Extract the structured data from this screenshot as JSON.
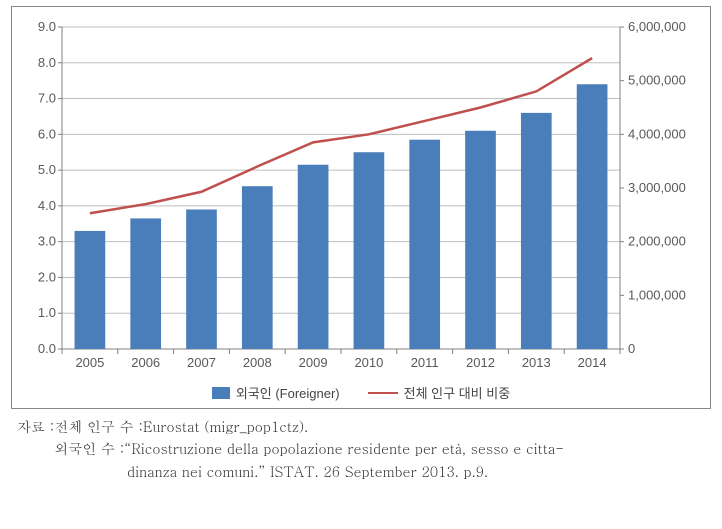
{
  "chart": {
    "type": "bar+line",
    "categories": [
      "2005",
      "2006",
      "2007",
      "2008",
      "2009",
      "2010",
      "2011",
      "2012",
      "2013",
      "2014"
    ],
    "bar_series": {
      "name": "외국인 (Foreigner)",
      "values": [
        3.3,
        3.65,
        3.9,
        4.55,
        5.15,
        5.5,
        5.85,
        6.1,
        6.6,
        7.4
      ],
      "color": "#4a7ebb"
    },
    "line_series": {
      "name": "전체 인구 대비 비중",
      "values": [
        2530000,
        2700000,
        2930000,
        3400000,
        3850000,
        4000000,
        4250000,
        4500000,
        4800000,
        5420000
      ],
      "color": "#c0504d",
      "line_width": 2.5
    },
    "y_left": {
      "min": 0,
      "max": 9,
      "step": 1,
      "fmt": "fixed1"
    },
    "y_right": {
      "min": 0,
      "max": 6000000,
      "step": 1000000,
      "fmt": "comma"
    },
    "plot_bg": "#ffffff",
    "grid_color": "#bfbfbf",
    "axis_color": "#808080",
    "tick_fontsize": 13,
    "bar_width_ratio": 0.55
  },
  "legend": {
    "bar_label": "외국인 (Foreigner)",
    "line_label": "전체 인구 대비 비중"
  },
  "source": {
    "label": "자료 : ",
    "line1_label": "전체 인구 수 : ",
    "line1_value": "Eurostat (migr_pop1ctz).",
    "line2_label": "외국인 수 : ",
    "line2_value1": "“Ricostruzione della popolazione residente per età, sesso e citta-",
    "line2_value2": "dinanza nei comuni.” ISTAT. 26 September 2013. p.9."
  }
}
